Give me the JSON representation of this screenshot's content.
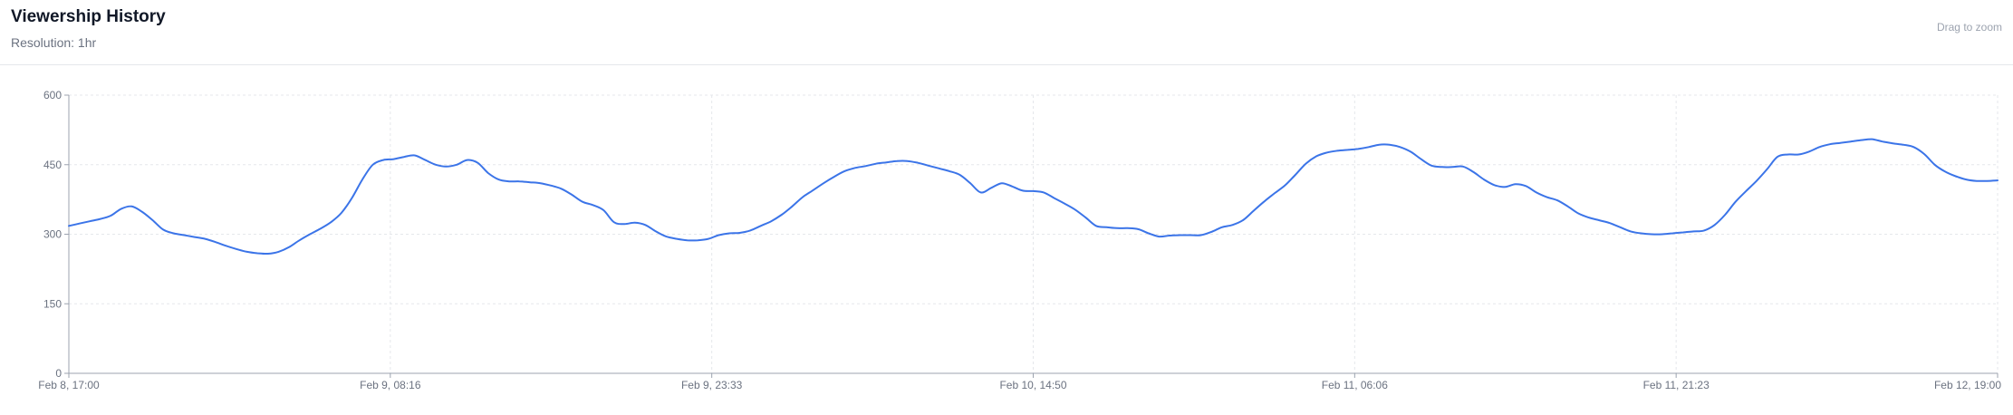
{
  "header": {
    "title": "Viewership History",
    "subtitle": "Resolution: 1hr",
    "zoom_hint": "Drag to zoom"
  },
  "colors": {
    "line": "#3b74e8",
    "grid": "#e5e7eb",
    "axis": "#9ca3af"
  },
  "chart_data": {
    "type": "line",
    "title": "Viewership History",
    "xlabel": "",
    "ylabel": "",
    "ylim": [
      0,
      600
    ],
    "yticks": [
      0,
      150,
      300,
      450,
      600
    ],
    "xticks": [
      "Feb 8, 17:00",
      "Feb 9, 08:16",
      "Feb 9, 23:33",
      "Feb 10, 14:50",
      "Feb 11, 06:06",
      "Feb 11, 21:23",
      "Feb 12, 19:00"
    ],
    "x_start": "Feb 8, 17:00",
    "x_end": "Feb 12, 19:00",
    "grid": true,
    "legend": "none",
    "series": [
      {
        "name": "",
        "values": [
          318,
          323,
          328,
          333,
          340,
          355,
          360,
          348,
          330,
          310,
          302,
          298,
          294,
          290,
          283,
          275,
          268,
          262,
          259,
          258,
          262,
          272,
          287,
          300,
          312,
          326,
          346,
          378,
          418,
          450,
          460,
          462,
          467,
          470,
          460,
          450,
          446,
          450,
          460,
          454,
          432,
          418,
          414,
          414,
          412,
          410,
          405,
          398,
          385,
          370,
          363,
          352,
          326,
          322,
          325,
          320,
          306,
          295,
          290,
          287,
          287,
          290,
          298,
          302,
          303,
          308,
          318,
          328,
          342,
          360,
          380,
          395,
          410,
          424,
          436,
          443,
          447,
          452,
          455,
          458,
          458,
          454,
          448,
          442,
          436,
          428,
          410,
          390,
          400,
          410,
          403,
          394,
          393,
          390,
          378,
          366,
          353,
          336,
          318,
          315,
          313,
          313,
          311,
          302,
          295,
          297,
          298,
          298,
          298,
          305,
          315,
          320,
          330,
          350,
          370,
          388,
          405,
          428,
          452,
          468,
          476,
          480,
          482,
          484,
          488,
          493,
          493,
          488,
          478,
          462,
          448,
          445,
          445,
          446,
          434,
          418,
          406,
          402,
          408,
          404,
          390,
          380,
          373,
          360,
          345,
          336,
          330,
          324,
          315,
          306,
          302,
          300,
          300,
          302,
          304,
          306,
          308,
          320,
          342,
          370,
          393,
          415,
          440,
          467,
          472,
          472,
          478,
          488,
          494,
          497,
          500,
          503,
          505,
          500,
          496,
          493,
          488,
          473,
          450,
          435,
          425,
          418,
          415,
          415,
          416
        ]
      }
    ]
  }
}
